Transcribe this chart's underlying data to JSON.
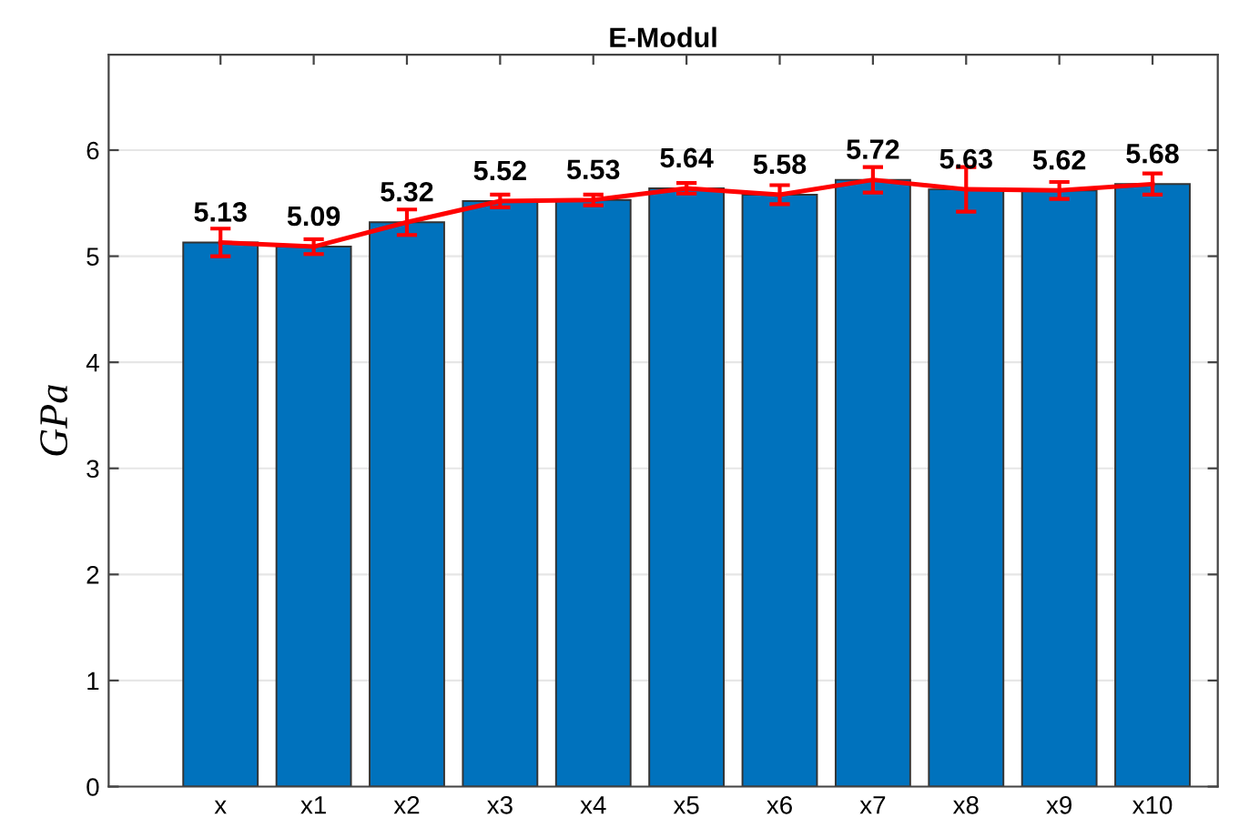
{
  "chart_data": {
    "type": "bar",
    "title": "E-Modul",
    "ylabel": "GPa",
    "categories": [
      "x",
      "x1",
      "x2",
      "x3",
      "x4",
      "x5",
      "x6",
      "x7",
      "x8",
      "x9",
      "x10"
    ],
    "series": [
      {
        "color": "#0072bd",
        "values": [
          5.13,
          5.09,
          5.32,
          5.52,
          5.53,
          5.64,
          5.58,
          5.72,
          5.63,
          5.62,
          5.68
        ],
        "value_labels": [
          "5.13",
          "5.09",
          "5.32",
          "5.52",
          "5.53",
          "5.64",
          "5.58",
          "5.72",
          "5.63",
          "5.62",
          "5.68"
        ]
      },
      {
        "type": "line",
        "color": "#ff0000",
        "values": [
          5.13,
          5.09,
          5.32,
          5.52,
          5.53,
          5.64,
          5.58,
          5.72,
          5.63,
          5.62,
          5.68
        ],
        "errors": [
          0.13,
          0.07,
          0.12,
          0.06,
          0.05,
          0.05,
          0.09,
          0.12,
          0.21,
          0.08,
          0.1
        ]
      }
    ],
    "ylim": [
      0,
      6.9
    ],
    "yticks": [
      0,
      1,
      2,
      3,
      4,
      5,
      6
    ],
    "grid": "y",
    "legend": false,
    "marker": "none",
    "line_style": "solid"
  }
}
